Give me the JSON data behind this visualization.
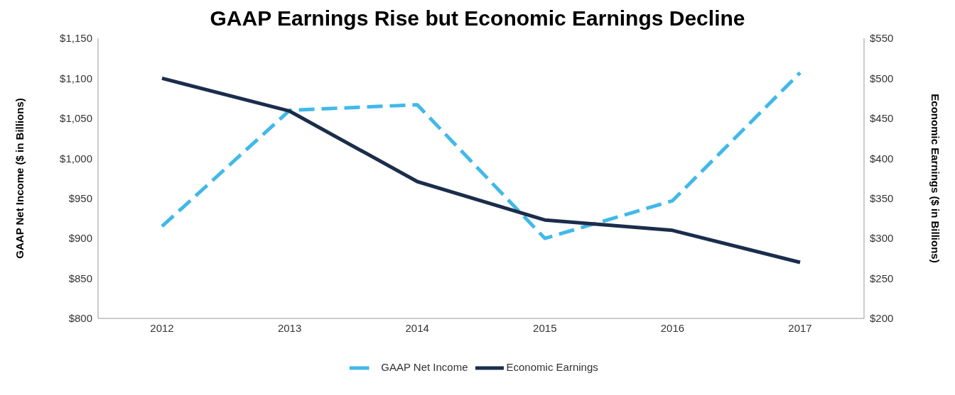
{
  "chart_data": {
    "type": "line",
    "title": "GAAP Earnings Rise but Economic Earnings Decline",
    "ylabel": "GAAP Net Income ($ in Billions)",
    "y2label": "Economic Earnings ($ in Billions)",
    "categories": [
      "2012",
      "2013",
      "2014",
      "2015",
      "2016",
      "2017"
    ],
    "series": [
      {
        "name": "GAAP Net Income",
        "color": "#41b9e8",
        "values": [
          915,
          1060,
          1067,
          900,
          947,
          1107
        ],
        "line_style": "dashed"
      },
      {
        "name": "Economic Earnings",
        "color": "#1b2d4b",
        "values": [
          500,
          459,
          371,
          323,
          310,
          270
        ],
        "axis": "y2",
        "line_style": "solid"
      }
    ],
    "ylim": [
      800,
      1150
    ],
    "yticks": [
      {
        "value": 800,
        "label": "$800"
      },
      {
        "value": 850,
        "label": "$850"
      },
      {
        "value": 900,
        "label": "$900"
      },
      {
        "value": 950,
        "label": "$950"
      },
      {
        "value": 1000,
        "label": "$1,000"
      },
      {
        "value": 1050,
        "label": "$1,050"
      },
      {
        "value": 1100,
        "label": "$1,100"
      },
      {
        "value": 1150,
        "label": "$1,150"
      }
    ],
    "y2lim": [
      200,
      550
    ],
    "y2ticks": [
      {
        "value": 200,
        "label": "$200"
      },
      {
        "value": 250,
        "label": "$250"
      },
      {
        "value": 300,
        "label": "$300"
      },
      {
        "value": 350,
        "label": "$350"
      },
      {
        "value": 400,
        "label": "$400"
      },
      {
        "value": 450,
        "label": "$450"
      },
      {
        "value": 500,
        "label": "$500"
      },
      {
        "value": 550,
        "label": "$550"
      }
    ],
    "grid": false,
    "legend": "bottom",
    "marker": "none"
  }
}
